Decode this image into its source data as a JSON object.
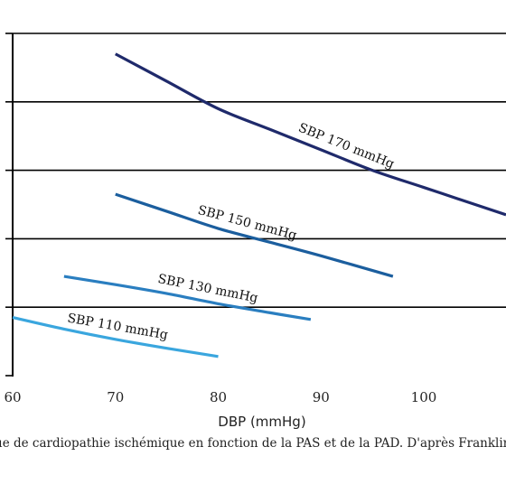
{
  "chart_data": {
    "type": "line",
    "title": "",
    "xlabel": "DBP (mmHg)",
    "ylabel": "",
    "xlim": [
      60,
      108
    ],
    "ylim": [
      0,
      5
    ],
    "x_ticks": [
      60,
      70,
      80,
      90,
      100
    ],
    "y_ticks": [
      0,
      1,
      2,
      3,
      4,
      5
    ],
    "grid": "horizontal",
    "series": [
      {
        "name": "SBP 170 mmHg",
        "color": "#1f2a6b",
        "x": [
          70,
          75,
          80,
          85,
          90,
          95,
          100,
          105,
          108
        ],
        "y": [
          4.7,
          4.3,
          3.9,
          3.6,
          3.3,
          3.0,
          2.75,
          2.5,
          2.35
        ]
      },
      {
        "name": "SBP 150 mmHg",
        "color": "#1b5e9e",
        "x": [
          70,
          75,
          80,
          85,
          90,
          97
        ],
        "y": [
          2.65,
          2.4,
          2.15,
          1.95,
          1.75,
          1.45
        ]
      },
      {
        "name": "SBP 130 mmHg",
        "color": "#2a7ec0",
        "x": [
          65,
          70,
          75,
          80,
          85,
          89
        ],
        "y": [
          1.45,
          1.33,
          1.2,
          1.05,
          0.92,
          0.82
        ]
      },
      {
        "name": "SBP 110 mmHg",
        "color": "#3aa6de",
        "x": [
          60,
          65,
          70,
          75,
          80
        ],
        "y": [
          0.85,
          0.68,
          0.53,
          0.4,
          0.28
        ]
      }
    ]
  },
  "caption": "ue de cardiopathie ischémique en fonction de la PAS et de la PAD. D'après Franklin"
}
